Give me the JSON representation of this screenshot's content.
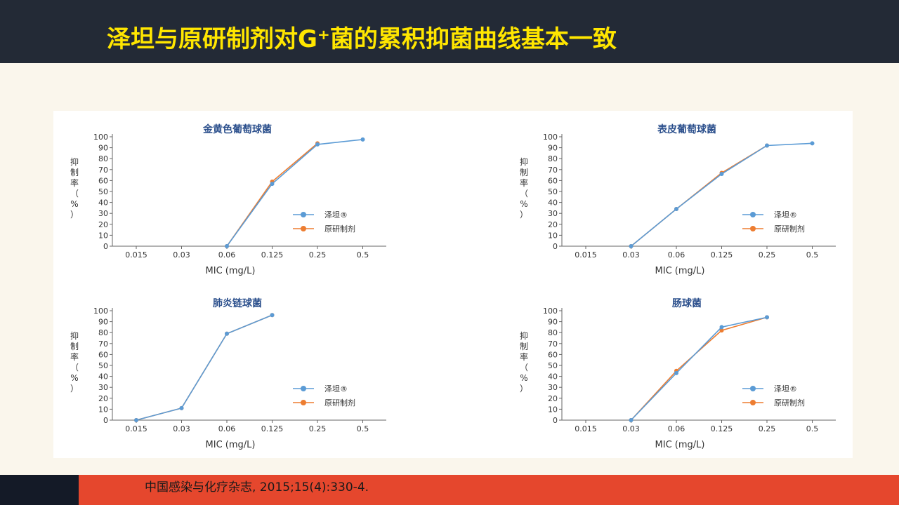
{
  "slide": {
    "title": "泽坦与原研制剂对G⁺菌的累积抑菌曲线基本一致",
    "citation": "中国感染与化疗杂志, 2015;15(4):330-4."
  },
  "colors": {
    "zetan": "#5b9bd5",
    "reference": "#ed7d31",
    "title_text": "#2b4f8c",
    "axis": "#666666"
  },
  "chart_data": [
    {
      "type": "line",
      "title": "金黄色葡萄球菌",
      "xlabel": "MIC (mg/L)",
      "ylabel": "抑制率（%）",
      "categories": [
        "0.015",
        "0.03",
        "0.06",
        "0.125",
        "0.25",
        "0.5"
      ],
      "yticks": [
        "0",
        "10",
        "20",
        "30",
        "40",
        "50",
        "60",
        "70",
        "80",
        "90",
        "100"
      ],
      "ylim": [
        0,
        100
      ],
      "legend": "right",
      "series": [
        {
          "name": "泽坦®",
          "values": [
            null,
            null,
            0,
            57,
            93,
            97.5
          ]
        },
        {
          "name": "原研制剂",
          "values": [
            null,
            null,
            0,
            59,
            94,
            null
          ]
        }
      ]
    },
    {
      "type": "line",
      "title": "表皮葡萄球菌",
      "xlabel": "MIC (mg/L)",
      "ylabel": "抑制率（%）",
      "categories": [
        "0.015",
        "0.03",
        "0.06",
        "0.125",
        "0.25",
        "0.5"
      ],
      "yticks": [
        "0",
        "10",
        "20",
        "30",
        "40",
        "50",
        "60",
        "70",
        "80",
        "90",
        "100"
      ],
      "ylim": [
        0,
        100
      ],
      "legend": "right",
      "series": [
        {
          "name": "泽坦®",
          "values": [
            null,
            0,
            34,
            66,
            92,
            94
          ]
        },
        {
          "name": "原研制剂",
          "values": [
            null,
            0,
            34,
            67,
            92,
            null
          ]
        }
      ]
    },
    {
      "type": "line",
      "title": "肺炎链球菌",
      "xlabel": "MIC (mg/L)",
      "ylabel": "抑制率（%）",
      "categories": [
        "0.015",
        "0.03",
        "0.06",
        "0.125",
        "0.25",
        "0.5"
      ],
      "yticks": [
        "0",
        "10",
        "20",
        "30",
        "40",
        "50",
        "60",
        "70",
        "80",
        "90",
        "100"
      ],
      "ylim": [
        0,
        100
      ],
      "legend": "right",
      "series": [
        {
          "name": "泽坦®",
          "values": [
            0,
            11,
            79,
            96,
            null,
            null
          ]
        },
        {
          "name": "原研制剂",
          "values": [
            0,
            11,
            79,
            96,
            null,
            null
          ]
        }
      ]
    },
    {
      "type": "line",
      "title": "肠球菌",
      "xlabel": "MIC (mg/L)",
      "ylabel": "抑制率（%）",
      "categories": [
        "0.015",
        "0.03",
        "0.06",
        "0.125",
        "0.25",
        "0.5"
      ],
      "yticks": [
        "0",
        "10",
        "20",
        "30",
        "40",
        "50",
        "60",
        "70",
        "80",
        "90",
        "100"
      ],
      "ylim": [
        0,
        100
      ],
      "legend": "right",
      "series": [
        {
          "name": "泽坦®",
          "values": [
            null,
            0,
            43,
            85,
            94,
            null
          ]
        },
        {
          "name": "原研制剂",
          "values": [
            null,
            0,
            45,
            82,
            94,
            null
          ]
        }
      ]
    }
  ]
}
